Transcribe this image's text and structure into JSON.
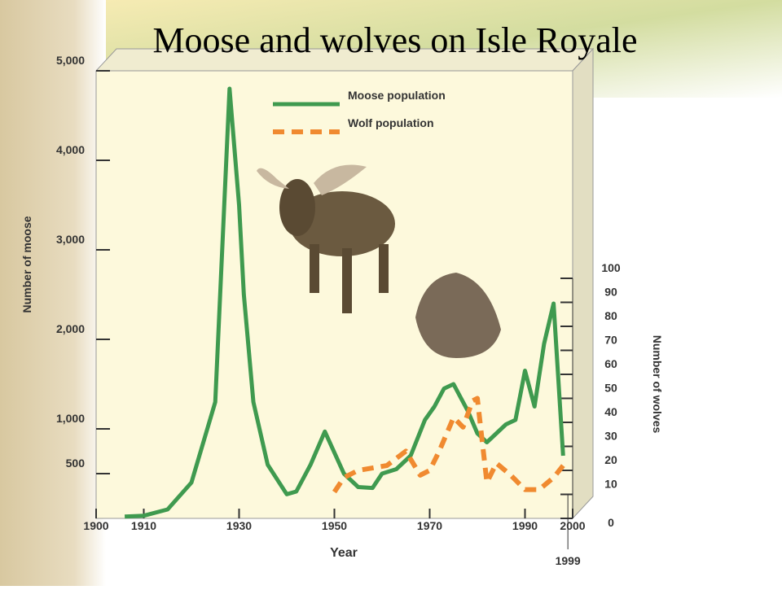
{
  "chart_data": {
    "type": "line",
    "title": "Moose and wolves on Isle Royale",
    "x_label": "Year",
    "y_label": "Number of moose",
    "y2_label": "Number of wolves",
    "xlim": [
      1900,
      2000
    ],
    "xticks": [
      1900,
      1910,
      1930,
      1950,
      1970,
      1990,
      2000
    ],
    "ylim": [
      0,
      5000
    ],
    "yticks": [
      500,
      {
        "value": 1000,
        "label": "1,000"
      },
      {
        "value": 2000,
        "label": "2,000"
      },
      {
        "value": 3000,
        "label": "3,000"
      },
      {
        "value": 4000,
        "label": "4,000"
      },
      {
        "value": 5000,
        "label": "5,000"
      }
    ],
    "y2lim": [
      0,
      100
    ],
    "y2ticks": [
      0,
      10,
      20,
      30,
      40,
      50,
      60,
      70,
      80,
      90,
      100
    ],
    "annotation_x": 1999,
    "series": [
      {
        "name": "Moose population",
        "color": "#3f9a4f",
        "dashed": false,
        "x": [
          1906,
          1910,
          1915,
          1920,
          1925,
          1928,
          1930,
          1931,
          1933,
          1936,
          1940,
          1942,
          1945,
          1948,
          1952,
          1955,
          1958,
          1960,
          1963,
          1966,
          1969,
          1971,
          1973,
          1975,
          1978,
          1980,
          1982,
          1984,
          1986,
          1988,
          1990,
          1992,
          1994,
          1996,
          1998
        ],
        "values": [
          20,
          30,
          100,
          400,
          1300,
          4800,
          3500,
          2500,
          1300,
          600,
          270,
          300,
          600,
          970,
          500,
          350,
          340,
          500,
          550,
          700,
          1100,
          1250,
          1450,
          1500,
          1200,
          950,
          850,
          950,
          1050,
          1100,
          1650,
          1250,
          1950,
          2400,
          700
        ]
      },
      {
        "name": "Wolf population",
        "color": "#f08a30",
        "dashed": true,
        "axis": "y2",
        "x": [
          1950,
          1952,
          1955,
          1958,
          1961,
          1963,
          1965,
          1968,
          1970,
          1972,
          1975,
          1977,
          1979,
          1980,
          1982,
          1984,
          1987,
          1990,
          1993,
          1996,
          1998
        ],
        "values": [
          11,
          17,
          20,
          21,
          22,
          25,
          28,
          18,
          20,
          28,
          42,
          38,
          49,
          50,
          15,
          23,
          18,
          12,
          12,
          17,
          22
        ]
      }
    ]
  }
}
